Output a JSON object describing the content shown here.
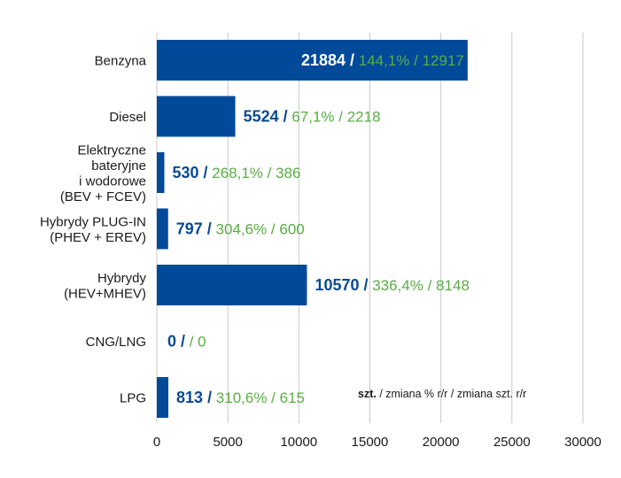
{
  "chart_data": {
    "type": "bar",
    "orientation": "horizontal",
    "categories": [
      [
        "Benzyna"
      ],
      [
        "Diesel"
      ],
      [
        "Elektryczne",
        "bateryjne",
        "i wodorowe",
        "(BEV + FCEV)"
      ],
      [
        "Hybrydy PLUG-IN",
        "(PHEV + EREV)"
      ],
      [
        "Hybrydy",
        "(HEV+MHEV)"
      ],
      [
        "CNG/LNG"
      ],
      [
        "LPG"
      ]
    ],
    "values": [
      21884,
      5524,
      530,
      797,
      10570,
      0,
      813
    ],
    "bar_labels": [
      {
        "main": "21884 /",
        "rest": " 144,1% / 12917",
        "inside": true
      },
      {
        "main": "5524 /",
        "rest": " 67,1% / 2218",
        "inside": false
      },
      {
        "main": "530 /",
        "rest": " 268,1% / 386",
        "inside": false
      },
      {
        "main": "797 /",
        "rest": " 304,6% / 600",
        "inside": false
      },
      {
        "main": "10570 /",
        "rest": " 336,4% / 8148",
        "inside": false
      },
      {
        "main": "0 /",
        "rest": "   / 0",
        "inside": false
      },
      {
        "main": "813 /",
        "rest": " 310,6% / 615",
        "inside": false
      }
    ],
    "xticks": [
      0,
      5000,
      10000,
      15000,
      20000,
      25000,
      30000
    ],
    "xlim": [
      0,
      30000
    ],
    "grid": "vertical",
    "title": "",
    "xlabel": "",
    "ylabel": "",
    "colors": {
      "bar": "#004a99",
      "value_main": "#0a4a90",
      "value_main_inside": "#ffffff",
      "value_rest": "#5aac46",
      "grid": "#c8c8c8"
    }
  },
  "legend_note": {
    "bold": "szt.",
    "rest": " / zmiana % r/r / zmiana szt. r/r"
  }
}
